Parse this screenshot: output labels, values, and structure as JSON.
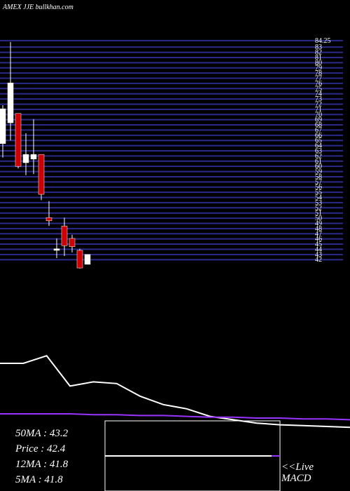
{
  "chart_data": {
    "type": "candlestick",
    "title": "AMEX  JJE bullkhan.com",
    "ylim": [
      40,
      86
    ],
    "yticks": [
      42,
      43,
      44,
      45,
      46,
      47,
      48,
      49,
      50,
      51,
      52,
      53,
      54,
      55,
      56,
      57,
      58,
      59,
      60,
      61,
      62,
      63,
      64,
      65,
      66,
      67,
      68,
      69,
      70,
      71,
      72,
      73,
      74,
      75,
      76,
      77,
      78,
      79,
      80,
      81,
      82,
      83,
      {
        "value": 84.25,
        "label": "84.25"
      }
    ],
    "grid": true,
    "up_color": "#ffffff",
    "down_color": "#cc0000",
    "grid_color": "#2a2a8a",
    "open": [
      64.4,
      68.4,
      70.2,
      60.7,
      61.4,
      62.3,
      50.1,
      43.8,
      48.5,
      46.1,
      43.8,
      41.1
    ],
    "close": [
      71.1,
      76.1,
      60.0,
      62.3,
      62.3,
      54.6,
      49.5,
      44.1,
      44.7,
      44.5,
      40.4,
      43.0
    ],
    "high": [
      71.8,
      84.0,
      70.2,
      66.4,
      69.1,
      62.3,
      53.3,
      46.1,
      50.1,
      46.8,
      44.1,
      43.0
    ],
    "low": [
      61.7,
      65.0,
      59.6,
      58.3,
      58.5,
      53.5,
      48.5,
      42.3,
      42.7,
      43.4,
      40.3,
      41.1
    ],
    "indicator": {
      "ylim": [
        0,
        100
      ],
      "series": [
        {
          "color": "#ffffff",
          "values": [
            85,
            85,
            94,
            58,
            63,
            61,
            46,
            36,
            31,
            22,
            18,
            14,
            12,
            11,
            10,
            9
          ]
        },
        {
          "color": "#9933ff",
          "values": [
            25,
            25,
            25,
            25,
            24,
            24,
            23,
            23,
            22,
            21,
            21,
            20,
            20,
            19,
            19,
            18
          ]
        }
      ]
    },
    "info": [
      "50MA : 43.2",
      "Price  : 42.4",
      "12MA : 41.8",
      "5MA : 41.8"
    ],
    "live": "<<Live",
    "macd": "MACD"
  }
}
